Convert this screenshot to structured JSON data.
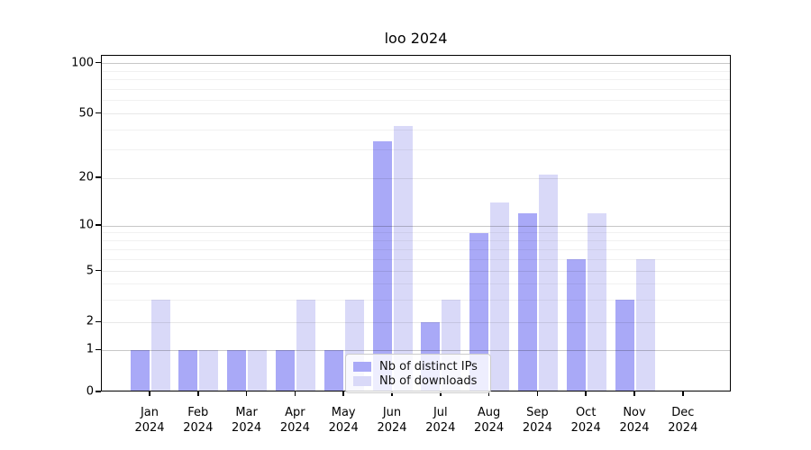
{
  "title": "loo 2024",
  "chart_data": {
    "type": "bar",
    "title": "loo 2024",
    "categories": [
      "Jan 2024",
      "Feb 2024",
      "Mar 2024",
      "Apr 2024",
      "May 2024",
      "Jun 2024",
      "Jul 2024",
      "Aug 2024",
      "Sep 2024",
      "Oct 2024",
      "Nov 2024",
      "Dec 2024"
    ],
    "months": [
      "Jan",
      "Feb",
      "Mar",
      "Apr",
      "May",
      "Jun",
      "Jul",
      "Aug",
      "Sep",
      "Oct",
      "Nov",
      "Dec"
    ],
    "year": "2024",
    "series": [
      {
        "name": "Nb of distinct IPs",
        "color": "#a9a9f7",
        "values": [
          1,
          1,
          1,
          1,
          1,
          34,
          2,
          9,
          12,
          6,
          3,
          0
        ]
      },
      {
        "name": "Nb of downloads",
        "color": "#d9d9f8",
        "values": [
          3,
          1,
          1,
          3,
          3,
          42,
          3,
          14,
          21,
          12,
          6,
          0
        ]
      }
    ],
    "yaxis": {
      "scale": "log-like",
      "ylim": [
        0,
        100
      ],
      "tick_values": [
        0,
        1,
        2,
        5,
        10,
        20,
        50,
        100
      ],
      "tick_labels": [
        "0",
        "1",
        "2",
        "5",
        "10",
        "20",
        "50",
        "100"
      ],
      "major_gridlines": [
        1,
        10,
        100
      ],
      "mid_gridlines": [
        2,
        5,
        20,
        50
      ],
      "minor_gridlines": [
        3,
        4,
        6,
        7,
        8,
        9,
        30,
        40,
        60,
        70,
        80,
        90
      ]
    },
    "legend": {
      "position": "lower-center",
      "entries": [
        "Nb of distinct IPs",
        "Nb of downloads"
      ]
    },
    "grid": true
  }
}
